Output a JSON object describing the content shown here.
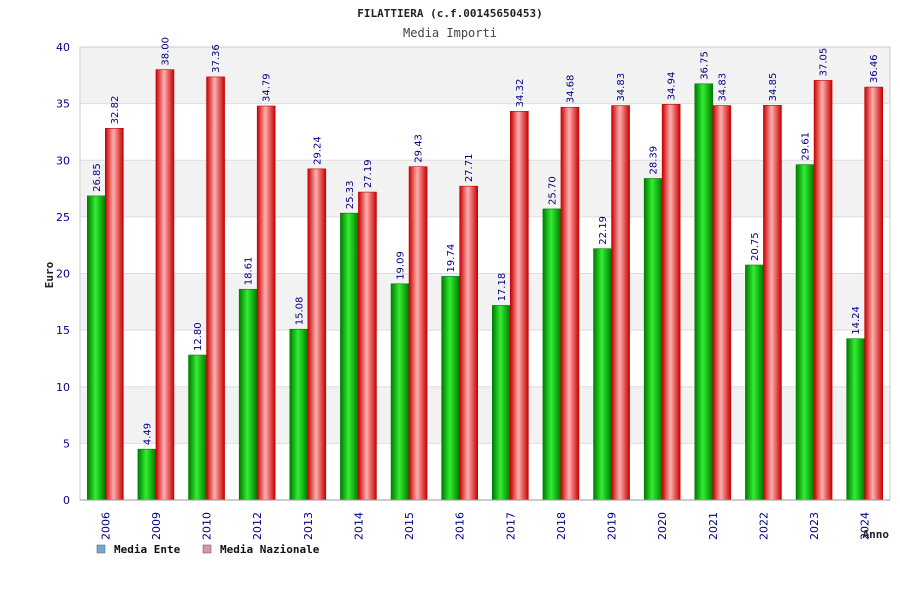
{
  "chart_data": {
    "type": "bar",
    "title": "FILATTIERA (c.f.00145650453)",
    "subtitle": "Media Importi",
    "xlabel": "Anno",
    "ylabel": "Euro",
    "ylim": [
      0,
      40
    ],
    "yticks": [
      0,
      5,
      10,
      15,
      20,
      25,
      30,
      35,
      40
    ],
    "categories": [
      "2006",
      "2009",
      "2010",
      "2012",
      "2013",
      "2014",
      "2015",
      "2016",
      "2017",
      "2018",
      "2019",
      "2020",
      "2021",
      "2022",
      "2023",
      "2024"
    ],
    "series": [
      {
        "name": "Media Ente",
        "values": [
          26.85,
          4.49,
          12.8,
          18.61,
          15.08,
          25.33,
          19.09,
          19.74,
          17.18,
          25.7,
          22.19,
          28.39,
          36.75,
          20.75,
          29.61,
          14.24
        ],
        "labels": [
          "26.85",
          "4.49",
          "12.80",
          "18.61",
          "15.08",
          "25.33",
          "19.09",
          "19.74",
          "17.18",
          "25.70",
          "22.19",
          "28.39",
          "36.75",
          "20.75",
          "29.61",
          "14.24"
        ]
      },
      {
        "name": "Media Nazionale",
        "values": [
          32.82,
          38.0,
          37.36,
          34.79,
          29.24,
          27.19,
          29.43,
          27.71,
          34.32,
          34.68,
          34.83,
          34.94,
          34.83,
          34.85,
          37.05,
          36.46
        ],
        "labels": [
          "32.82",
          "38.00",
          "37.36",
          "34.79",
          "29.24",
          "27.19",
          "29.43",
          "27.71",
          "34.32",
          "34.68",
          "34.83",
          "34.94",
          "34.83",
          "34.85",
          "37.05",
          "36.46"
        ]
      }
    ],
    "legend": [
      {
        "name": "Media Ente",
        "swatch": "#6fa8dc"
      },
      {
        "name": "Media Nazionale",
        "swatch": "#e48fb0"
      }
    ],
    "colors": {
      "ente_dark": "#007a00",
      "ente_light": "#33ee33",
      "naz_dark": "#c80000",
      "naz_light": "#ffb0b0",
      "band": "#f2f2f2",
      "grid": "#dddddd"
    }
  }
}
